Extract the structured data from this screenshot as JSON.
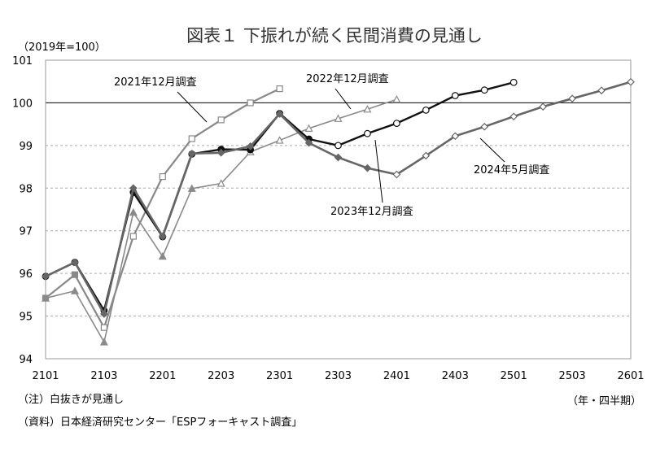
{
  "chart_data": {
    "type": "line",
    "title": "図表１ 下振れが続く民間消費の見通し",
    "ylabel": "（2019年=100）",
    "xlabel": "（年・四半期）",
    "ylim": [
      94,
      101
    ],
    "yticks": [
      "94",
      "95",
      "96",
      "97",
      "98",
      "99",
      "100",
      "101"
    ],
    "categories": [
      "2101",
      "2102",
      "2103",
      "2104",
      "2201",
      "2202",
      "2203",
      "2204",
      "2301",
      "2302",
      "2303",
      "2304",
      "2401",
      "2402",
      "2403",
      "2404",
      "2501",
      "2502",
      "2503",
      "2504",
      "2601"
    ],
    "xtick_labels": [
      "2101",
      "2103",
      "2201",
      "2203",
      "2301",
      "2303",
      "2401",
      "2403",
      "2501",
      "2503",
      "2601"
    ],
    "reference_line": 100,
    "grid": "horizontal dashed",
    "series": [
      {
        "name": "2021年12月調査",
        "color": "#888888",
        "marker": "square",
        "values": [
          95.42,
          95.97,
          94.73,
          96.87,
          98.27,
          99.16,
          99.6,
          100.0,
          100.33,
          null,
          null,
          null,
          null,
          null,
          null,
          null,
          null,
          null,
          null,
          null,
          null
        ],
        "open_from": 2
      },
      {
        "name": "2022年12月調査",
        "color": "#8a8a8a",
        "marker": "triangle",
        "values": [
          95.42,
          95.59,
          94.39,
          97.43,
          96.4,
          97.99,
          98.11,
          98.85,
          99.12,
          99.4,
          99.63,
          99.85,
          100.08,
          null,
          null,
          null,
          null,
          null,
          null,
          null,
          null
        ],
        "open_from": 6
      },
      {
        "name": "2023年12月調査",
        "color": "#111111",
        "marker": "circle",
        "values": [
          95.93,
          96.26,
          95.13,
          97.9,
          96.86,
          98.8,
          98.91,
          98.9,
          99.75,
          99.15,
          99.0,
          99.28,
          99.52,
          99.83,
          100.17,
          100.3,
          100.48,
          null,
          null,
          null,
          null
        ],
        "open_from": 10
      },
      {
        "name": "2024年5月調査",
        "color": "#666666",
        "marker": "diamond",
        "values": [
          95.93,
          96.26,
          95.05,
          98.0,
          96.87,
          98.81,
          98.83,
          98.98,
          99.74,
          99.06,
          98.72,
          98.47,
          98.32,
          98.76,
          99.22,
          99.44,
          99.68,
          99.91,
          100.1,
          100.29,
          100.49
        ],
        "open_from": 12
      }
    ],
    "annotations": [
      {
        "text": "2021年12月調査"
      },
      {
        "text": "2022年12月調査"
      },
      {
        "text": "2023年12月調査"
      },
      {
        "text": "2024年5月調査"
      }
    ]
  },
  "notes": {
    "note1": "（注）白抜きが見通し",
    "note2": "（資料）日本経済研究センター「ESPフォーキャスト調査」"
  }
}
